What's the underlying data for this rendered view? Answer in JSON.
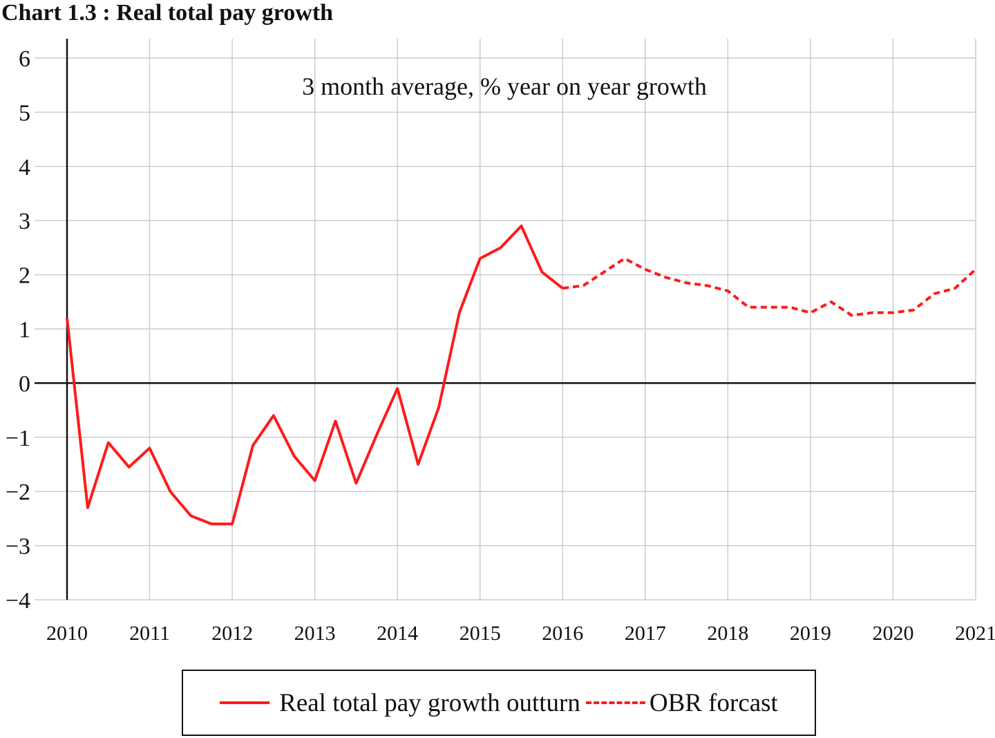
{
  "title": "Chart 1.3 : Real total pay growth",
  "chart_data": {
    "type": "line",
    "title": "Chart 1.3 : Real total pay growth",
    "annotation": "3 month average, % year on year growth",
    "xlabel": "",
    "ylabel": "",
    "xlim": [
      2010,
      2021
    ],
    "ylim": [
      -4,
      6
    ],
    "x_ticks": [
      "2010",
      "2011",
      "2012",
      "2013",
      "2014",
      "2015",
      "2016",
      "2017",
      "2018",
      "2019",
      "2020",
      "2021"
    ],
    "y_ticks": [
      "6",
      "5",
      "4",
      "3",
      "2",
      "1",
      "0",
      "−1",
      "−2",
      "−3",
      "−4"
    ],
    "y_tick_values": [
      6,
      5,
      4,
      3,
      2,
      1,
      0,
      -1,
      -2,
      -3,
      -4
    ],
    "grid": true,
    "legend_position": "bottom",
    "colors": {
      "series": "#ff1a1a",
      "axis": "#111111",
      "grid": "#cccccc"
    },
    "series": [
      {
        "name": "Real total pay growth outturn",
        "style": "solid",
        "x": [
          2010.0,
          2010.25,
          2010.5,
          2010.75,
          2011.0,
          2011.25,
          2011.5,
          2011.75,
          2012.0,
          2012.25,
          2012.5,
          2012.75,
          2013.0,
          2013.25,
          2013.5,
          2013.75,
          2014.0,
          2014.25,
          2014.5,
          2014.75,
          2015.0,
          2015.25,
          2015.5,
          2015.75,
          2016.0
        ],
        "values": [
          1.2,
          -2.3,
          -1.1,
          -1.55,
          -1.2,
          -2.0,
          -2.45,
          -2.6,
          -2.6,
          -1.15,
          -0.6,
          -1.35,
          -1.8,
          -0.7,
          -1.85,
          -0.95,
          -0.1,
          -1.5,
          -0.45,
          1.3,
          2.3,
          2.5,
          2.9,
          2.05,
          1.75
        ]
      },
      {
        "name": "OBR forcast",
        "style": "dashed",
        "x": [
          2016.0,
          2016.25,
          2016.5,
          2016.75,
          2017.0,
          2017.25,
          2017.5,
          2017.75,
          2018.0,
          2018.25,
          2018.5,
          2018.75,
          2019.0,
          2019.25,
          2019.5,
          2019.75,
          2020.0,
          2020.25,
          2020.5,
          2020.75,
          2021.0
        ],
        "values": [
          1.75,
          1.8,
          2.05,
          2.3,
          2.1,
          1.95,
          1.85,
          1.8,
          1.7,
          1.4,
          1.4,
          1.4,
          1.3,
          1.5,
          1.25,
          1.3,
          1.3,
          1.35,
          1.65,
          1.75,
          2.1
        ]
      }
    ]
  },
  "legend": {
    "outturn_label": "Real total pay growth outturn",
    "forecast_label": "OBR forcast"
  }
}
